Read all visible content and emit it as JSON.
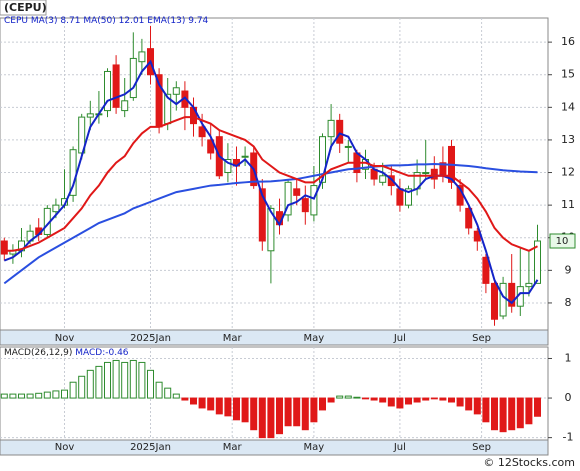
{
  "chart_data": [
    {
      "type": "candlestick",
      "title": "(CEPU)",
      "name": "CEPU",
      "categories": [
        null,
        null,
        null,
        null,
        null,
        null,
        null,
        null,
        null,
        null,
        null,
        null,
        null,
        null,
        null,
        null,
        null,
        null,
        null,
        null,
        null,
        null,
        null,
        null,
        null,
        null,
        null,
        null,
        null,
        null,
        null,
        null,
        null,
        null,
        null,
        null,
        null,
        null,
        null,
        null,
        null,
        null,
        null,
        null,
        null,
        null,
        null,
        null,
        null,
        null,
        null,
        null,
        null,
        null,
        null,
        null,
        null,
        null,
        null,
        null,
        null,
        null,
        null
      ],
      "open": [
        9.9,
        9.5,
        9.6,
        9.9,
        10.3,
        10.1,
        10.8,
        11.0,
        11.3,
        12.6,
        13.7,
        13.8,
        13.9,
        15.3,
        13.9,
        14.3,
        15.4,
        15.8,
        15.0,
        13.5,
        14.4,
        14.5,
        14.0,
        13.4,
        13.0,
        13.1,
        12.0,
        12.4,
        12.5,
        12.6,
        11.5,
        9.6,
        10.8,
        10.7,
        11.5,
        11.2,
        10.7,
        11.7,
        13.1,
        13.6,
        12.8,
        12.6,
        12.1,
        12.1,
        11.7,
        11.9,
        11.5,
        11.0,
        11.5,
        12.0,
        12.1,
        12.3,
        12.8,
        11.6,
        10.9,
        10.2,
        9.4,
        8.6,
        7.6,
        8.6,
        7.9,
        8.5,
        8.6
      ],
      "high": [
        10.0,
        9.8,
        10.3,
        10.4,
        10.6,
        11.0,
        11.2,
        12.1,
        12.8,
        13.8,
        14.2,
        14.5,
        15.2,
        15.6,
        14.9,
        16.3,
        16.1,
        16.5,
        15.2,
        14.9,
        14.8,
        14.8,
        14.3,
        13.8,
        13.5,
        13.3,
        12.9,
        12.8,
        12.8,
        12.8,
        11.8,
        11.0,
        11.2,
        11.8,
        11.8,
        11.6,
        12.2,
        13.2,
        14.1,
        13.8,
        13.0,
        12.7,
        12.7,
        12.3,
        12.3,
        12.2,
        11.8,
        11.6,
        12.4,
        13.0,
        12.5,
        12.8,
        13.0,
        11.8,
        11.0,
        10.3,
        9.5,
        8.7,
        8.8,
        9.5,
        9.7,
        9.6,
        10.4
      ],
      "low": [
        9.3,
        9.2,
        9.4,
        9.8,
        9.9,
        10.0,
        10.6,
        10.9,
        11.1,
        12.4,
        13.3,
        13.5,
        13.7,
        13.8,
        13.7,
        14.2,
        15.0,
        14.7,
        13.2,
        13.3,
        13.9,
        13.3,
        13.1,
        12.8,
        12.4,
        11.8,
        11.7,
        11.6,
        12.2,
        11.5,
        9.6,
        8.6,
        10.1,
        10.5,
        11.0,
        10.4,
        10.5,
        11.5,
        12.7,
        12.6,
        12.3,
        11.7,
        11.8,
        11.6,
        11.6,
        11.3,
        10.8,
        10.9,
        11.3,
        11.8,
        11.5,
        11.7,
        11.5,
        10.8,
        10.1,
        9.6,
        8.3,
        7.3,
        7.5,
        7.7,
        7.6,
        8.2,
        8.6
      ],
      "close": [
        9.5,
        9.6,
        9.9,
        10.2,
        10.1,
        10.9,
        11.0,
        11.2,
        12.7,
        13.7,
        13.8,
        13.8,
        15.1,
        14.0,
        14.2,
        15.5,
        15.7,
        15.0,
        13.4,
        14.4,
        14.6,
        14.0,
        13.5,
        13.1,
        12.6,
        11.9,
        12.4,
        12.2,
        12.5,
        11.6,
        9.9,
        10.9,
        10.4,
        11.7,
        11.3,
        10.8,
        11.6,
        13.1,
        13.6,
        12.9,
        12.8,
        12.0,
        12.4,
        11.8,
        11.9,
        11.6,
        11.0,
        11.5,
        12.0,
        12.0,
        11.8,
        11.9,
        11.7,
        11.0,
        10.3,
        9.9,
        8.6,
        7.5,
        8.6,
        7.9,
        8.5,
        8.6,
        9.9
      ],
      "price_label": "10",
      "series": [
        {
          "name": "MA(3)",
          "color": "#1424c8",
          "values": [
            9.3,
            9.4,
            9.6,
            9.9,
            10.1,
            10.4,
            10.7,
            11.0,
            11.6,
            12.5,
            13.4,
            13.8,
            14.2,
            14.3,
            14.4,
            14.6,
            15.1,
            15.4,
            14.7,
            14.3,
            14.1,
            14.3,
            14.0,
            13.5,
            13.1,
            12.5,
            12.3,
            12.2,
            12.4,
            12.1,
            11.3,
            10.8,
            10.4,
            11.0,
            11.1,
            11.3,
            11.2,
            11.8,
            12.8,
            13.2,
            13.1,
            12.6,
            12.4,
            12.1,
            12.0,
            11.8,
            11.5,
            11.4,
            11.5,
            11.8,
            11.9,
            11.9,
            11.8,
            11.5,
            11.0,
            10.4,
            9.6,
            8.7,
            8.2,
            8.0,
            8.3,
            8.3,
            8.71
          ]
        },
        {
          "name": "MA(50)",
          "color": "#2a4fe0",
          "values": [
            8.6,
            8.8,
            9.0,
            9.2,
            9.4,
            9.55,
            9.7,
            9.85,
            10.0,
            10.15,
            10.3,
            10.45,
            10.55,
            10.65,
            10.75,
            10.9,
            11.0,
            11.1,
            11.2,
            11.3,
            11.4,
            11.45,
            11.5,
            11.55,
            11.6,
            11.62,
            11.65,
            11.68,
            11.7,
            11.72,
            11.72,
            11.73,
            11.75,
            11.78,
            11.8,
            11.85,
            11.9,
            11.95,
            12.0,
            12.05,
            12.1,
            12.12,
            12.15,
            12.18,
            12.2,
            12.22,
            12.22,
            12.23,
            12.25,
            12.25,
            12.26,
            12.25,
            12.24,
            12.22,
            12.2,
            12.17,
            12.13,
            12.1,
            12.07,
            12.05,
            12.03,
            12.02,
            12.01
          ]
        },
        {
          "name": "EMA(13)",
          "color": "#e01818",
          "values": [
            9.6,
            9.6,
            9.65,
            9.75,
            9.85,
            10.0,
            10.15,
            10.3,
            10.6,
            10.9,
            11.3,
            11.6,
            12.0,
            12.3,
            12.5,
            12.9,
            13.2,
            13.4,
            13.4,
            13.5,
            13.6,
            13.7,
            13.7,
            13.6,
            13.5,
            13.3,
            13.2,
            13.1,
            13.0,
            12.8,
            12.4,
            12.2,
            12.0,
            11.9,
            11.8,
            11.7,
            11.7,
            11.9,
            12.1,
            12.2,
            12.3,
            12.3,
            12.3,
            12.2,
            12.2,
            12.1,
            12.0,
            11.9,
            11.9,
            11.9,
            11.9,
            11.9,
            11.9,
            11.7,
            11.5,
            11.2,
            10.8,
            10.3,
            10.0,
            9.8,
            9.7,
            9.6,
            9.74
          ]
        }
      ],
      "up_color": "#2e8b2e",
      "down_color": "#e01818",
      "ylim": [
        7.17,
        16.74
      ],
      "yticks": [
        8,
        9,
        10,
        11,
        12,
        13,
        14,
        15,
        16
      ],
      "xticks": [
        {
          "value": 7,
          "label": "Nov"
        },
        {
          "value": 17,
          "label": "2025Jan"
        },
        {
          "value": 26.5,
          "label": "Mar"
        },
        {
          "value": 36,
          "label": "May"
        },
        {
          "value": 46,
          "label": "Jul"
        },
        {
          "value": 55.5,
          "label": "Sep"
        }
      ],
      "grid": true
    },
    {
      "type": "bar",
      "name": "MACD(26,12,9)",
      "value_name": "MACD:",
      "values": [
        0.1,
        0.1,
        0.1,
        0.1,
        0.12,
        0.15,
        0.18,
        0.2,
        0.4,
        0.55,
        0.7,
        0.8,
        0.9,
        0.95,
        0.9,
        0.95,
        0.9,
        0.7,
        0.4,
        0.25,
        0.1,
        -0.05,
        -0.15,
        -0.25,
        -0.3,
        -0.4,
        -0.45,
        -0.55,
        -0.6,
        -0.8,
        -1.0,
        -1.0,
        -0.9,
        -0.7,
        -0.7,
        -0.8,
        -0.6,
        -0.3,
        -0.1,
        0.05,
        0.05,
        0.02,
        -0.02,
        -0.05,
        -0.1,
        -0.2,
        -0.25,
        -0.15,
        -0.1,
        -0.05,
        -0.02,
        -0.05,
        -0.1,
        -0.2,
        -0.3,
        -0.4,
        -0.6,
        -0.8,
        -0.85,
        -0.8,
        -0.75,
        -0.65,
        -0.46
      ],
      "up_color": "#2e8b2e",
      "down_color": "#e01818",
      "ylim": [
        -1.06,
        1.29
      ],
      "yticks": [
        -1,
        0,
        1
      ],
      "xticks": [
        {
          "value": 7,
          "label": "Nov"
        },
        {
          "value": 17,
          "label": "2025Jan"
        },
        {
          "value": 26.5,
          "label": "Mar"
        },
        {
          "value": 36,
          "label": "May"
        },
        {
          "value": 46,
          "label": "Jul"
        },
        {
          "value": 55.5,
          "label": "Sep"
        }
      ],
      "grid": true
    }
  ],
  "watermark": "© 12Stocks.com"
}
